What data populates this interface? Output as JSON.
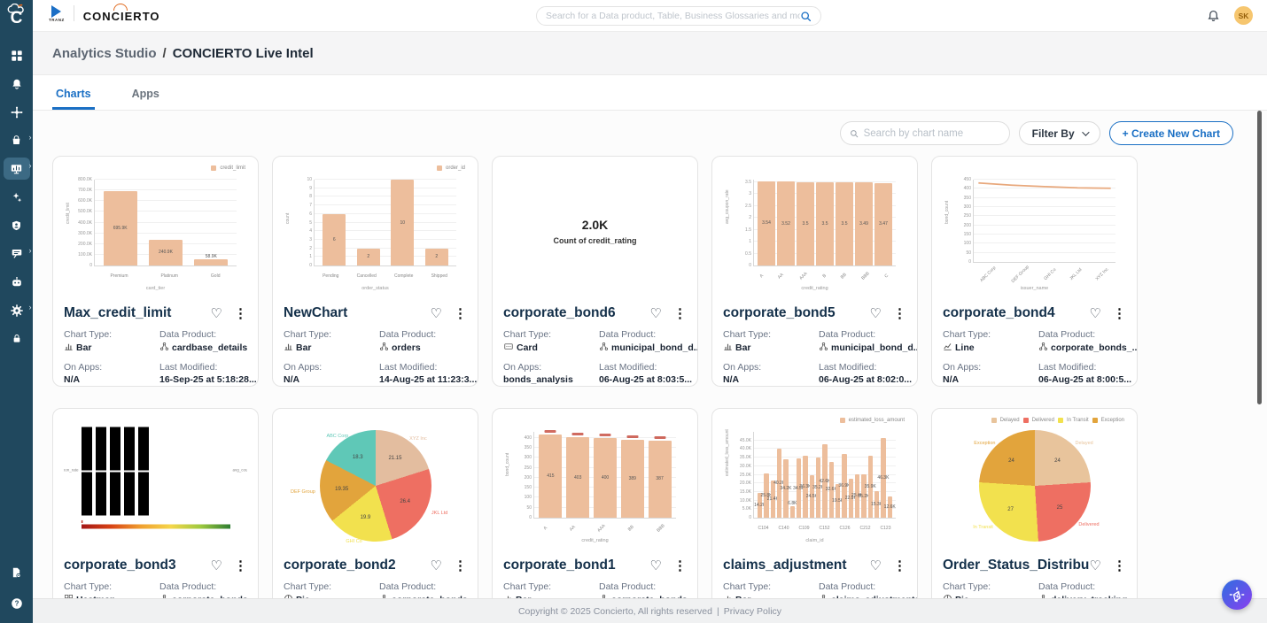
{
  "colors": {
    "sidebar": "#20485E",
    "accent_blue": "#1A6FC4",
    "bar_fill": "#EDBE9C",
    "brand_orange": "#E06A1F"
  },
  "sidebar": {
    "logo": "C",
    "icons": [
      {
        "icon": "grid",
        "name": "dashboard-icon"
      },
      {
        "icon": "bell",
        "name": "alerts-bell-icon"
      },
      {
        "icon": "move",
        "name": "compass-move-icon"
      },
      {
        "icon": "bag",
        "name": "marketplace-bag-icon",
        "chevron": true
      },
      {
        "icon": "monitor",
        "name": "analytics-studio-icon",
        "chevron": true,
        "active": true
      },
      {
        "icon": "sparkle",
        "name": "ai-sparkle-icon"
      },
      {
        "icon": "shield",
        "name": "security-shield-icon"
      },
      {
        "icon": "chat",
        "name": "collab-screen-icon",
        "chevron": true
      },
      {
        "icon": "bot",
        "name": "bot-icon"
      },
      {
        "icon": "gear",
        "name": "settings-gear-icon",
        "chevron": true
      },
      {
        "icon": "lock",
        "name": "secure-vault-icon"
      }
    ],
    "bottom_icons": [
      {
        "icon": "notes",
        "name": "release-notes-icon"
      },
      {
        "icon": "help",
        "name": "help-icon"
      }
    ]
  },
  "header": {
    "brand_tranz": "TRANZ",
    "brand_concierto": "CONCIERTO",
    "search_placeholder": "Search for a Data product, Table, Business Glossaries and more",
    "avatar": "SK"
  },
  "breadcrumb": {
    "section": "Analytics Studio",
    "separator": "/",
    "page": "CONCIERTO Live Intel"
  },
  "tabs": [
    {
      "label": "Charts"
    },
    {
      "label": "Apps"
    }
  ],
  "toolbar": {
    "search_placeholder": "Search by chart name",
    "filter_label": "Filter By",
    "create_label": "+  Create New Chart"
  },
  "meta_labels": {
    "chart_type": "Chart Type:",
    "data_product": "Data Product:",
    "on_apps": "On Apps:",
    "last_modified": "Last Modified:"
  },
  "footer": {
    "copyright": "Copyright © 2025 Concierto, All rights reserved",
    "divider": "|",
    "privacy": "Privacy Policy"
  },
  "cards": [
    {
      "title": "Max_credit_limit",
      "chart_type": "Bar",
      "data_product": "cardbase_details",
      "on_apps": "N/A",
      "last_modified": "16-Sep-25 at 5:18:28...",
      "chart_data": {
        "type": "bar",
        "legend": "credit_limit",
        "color": "#EDBE9C",
        "categories": [
          "Premium",
          "Platinum",
          "Gold"
        ],
        "values": [
          695.9,
          240.9,
          58.9
        ],
        "value_labels": [
          "695.9K",
          "240.9K",
          "58.9K"
        ],
        "ymax": 800,
        "ytickvals": [
          0,
          100,
          200,
          300,
          400,
          500,
          600,
          700,
          800
        ],
        "yticklabels": [
          "0",
          "100.0K",
          "200.0K",
          "300.0K",
          "400.0K",
          "500.0K",
          "600.0K",
          "700.0K",
          "800.0K"
        ],
        "xlabel": "card_tier",
        "ylabel": "credit_limit"
      }
    },
    {
      "title": "NewChart",
      "chart_type": "Bar",
      "data_product": "orders",
      "on_apps": "N/A",
      "last_modified": "14-Aug-25 at 11:23:3...",
      "chart_data": {
        "type": "bar",
        "legend": "order_id",
        "color": "#EDBE9C",
        "categories": [
          "Pending",
          "Cancelled",
          "Complete",
          "Shipped"
        ],
        "values": [
          6,
          2,
          10,
          2
        ],
        "value_labels": [
          "6",
          "2",
          "10",
          "2"
        ],
        "ymax": 10,
        "ytickvals": [
          0,
          1,
          2,
          3,
          4,
          5,
          6,
          7,
          8,
          9,
          10
        ],
        "yticklabels": [
          "0",
          "1",
          "2",
          "3",
          "4",
          "5",
          "6",
          "7",
          "8",
          "9",
          "10"
        ],
        "xlabel": "order_status",
        "ylabel": "count"
      }
    },
    {
      "title": "corporate_bond6",
      "chart_type": "Card",
      "data_product": "municipal_bond_d...",
      "on_apps": "bonds_analysis",
      "last_modified": "06-Aug-25 at 8:03:5...",
      "chart_data": {
        "type": "card",
        "value": "2.0K",
        "label": "Count of credit_rating"
      }
    },
    {
      "title": "corporate_bond5",
      "chart_type": "Bar",
      "data_product": "municipal_bond_d...",
      "on_apps": "N/A",
      "last_modified": "06-Aug-25 at 8:02:0...",
      "chart_data": {
        "type": "bar",
        "color": "#EDBE9C",
        "categories": [
          "A",
          "AA",
          "AAA",
          "B",
          "BB",
          "BBB",
          "C"
        ],
        "values": [
          3.54,
          3.52,
          3.5,
          3.5,
          3.5,
          3.49,
          3.47
        ],
        "value_labels": [
          "3.54",
          "3.52",
          "3.5",
          "3.5",
          "3.5",
          "3.49",
          "3.47"
        ],
        "ymax": 3.6,
        "rotate_x": true,
        "ytickvals": [
          0,
          0.5,
          1,
          1.5,
          2,
          2.5,
          3,
          3.5
        ],
        "yticklabels": [
          "0",
          "0.5",
          "1",
          "1.5",
          "2",
          "2.5",
          "3",
          "3.5"
        ],
        "xlabel": "credit_rating",
        "ylabel": "avg_coupon_rate"
      }
    },
    {
      "title": "corporate_bond4",
      "chart_type": "Line",
      "data_product": "corporate_bonds_...",
      "on_apps": "N/A",
      "last_modified": "06-Aug-25 at 8:00:5...",
      "chart_data": {
        "type": "line",
        "color": "#E8A87C",
        "x": [
          "ABC Corp",
          "DEF Group",
          "GHI Co",
          "JKL Ltd",
          "XYZ Inc"
        ],
        "values": [
          432,
          420,
          412,
          405,
          403
        ],
        "ymax": 450,
        "ytickvals": [
          0,
          50,
          100,
          150,
          200,
          250,
          300,
          350,
          400,
          450
        ],
        "yticklabels": [
          "0",
          "50",
          "100",
          "150",
          "200",
          "250",
          "300",
          "350",
          "400",
          "450"
        ],
        "xlabel": "issuer_name",
        "ylabel": "bond_count"
      }
    },
    {
      "title": "corporate_bond3",
      "chart_type": "Heatmap",
      "data_product": "corporate_bonds_...",
      "on_apps": "",
      "last_modified": "",
      "chart_data": {
        "type": "heatmap",
        "columns": [
          "A",
          "AA",
          "AAA",
          "BB",
          "BBB"
        ],
        "row_label": "avg_coupon_rate",
        "colorscale": [
          "#a31515",
          "#f0a030",
          "#f5d64a",
          "#2e7d32"
        ]
      }
    },
    {
      "title": "corporate_bond2",
      "chart_type": "Pie",
      "data_product": "corporate_bonds_...",
      "on_apps": "",
      "last_modified": "",
      "chart_data": {
        "type": "pie",
        "callouts": true,
        "slices": [
          {
            "label": "XYZ Inc",
            "value": 21.15,
            "text": "21.15",
            "color": "#E3BD9F"
          },
          {
            "label": "JKL Ltd",
            "value": 26.4,
            "text": "26.4",
            "color": "#EE6F62"
          },
          {
            "label": "GHI Co",
            "value": 19.9,
            "text": "19.9",
            "color": "#F2E14E"
          },
          {
            "label": "DEF Group",
            "value": 19.35,
            "text": "19.35",
            "color": "#E2A43C"
          },
          {
            "label": "ABC Corp",
            "value": 18.3,
            "text": "18.3",
            "color": "#5FC8B7"
          }
        ]
      }
    },
    {
      "title": "corporate_bond1",
      "chart_type": "Bar",
      "data_product": "corporate_bonds_...",
      "on_apps": "",
      "last_modified": "",
      "chart_data": {
        "type": "bar",
        "color": "#EDBE9C",
        "bar_top_marks": true,
        "categories": [
          "A",
          "AA",
          "AAA",
          "BB",
          "BBB"
        ],
        "values": [
          415,
          403,
          400,
          389,
          387
        ],
        "value_labels": [
          "415",
          "403",
          "400",
          "389",
          "387"
        ],
        "ymax": 430,
        "rotate_x": true,
        "ytickvals": [
          0,
          50,
          100,
          150,
          200,
          250,
          300,
          350,
          400
        ],
        "yticklabels": [
          "0",
          "50",
          "100",
          "150",
          "200",
          "250",
          "300",
          "350",
          "400"
        ],
        "xlabel": "credit_rating",
        "ylabel": "bond_count"
      }
    },
    {
      "title": "claims_adjustment",
      "chart_type": "Bar",
      "data_product": "claims_adjustments",
      "on_apps": "",
      "last_modified": "",
      "chart_data": {
        "type": "bar",
        "legend": "estimated_loss_amount",
        "color": "#EDBE9C",
        "values": [
          14.2,
          25.8,
          21.4,
          40.2,
          34.2,
          6.8,
          34.5,
          36.3,
          24.5,
          35.2,
          42.6,
          32.6,
          19.5,
          36.9,
          22.9,
          25.4,
          25.2,
          35.9,
          15.3,
          46.3,
          12.6
        ],
        "value_labels": [
          "14.2K",
          "25.8K",
          "21.4K",
          "40.2K",
          "34.2K",
          "6.8K",
          "34.5K",
          "36.3K",
          "24.5K",
          "35.2K",
          "42.6K",
          "32.6K",
          "19.5K",
          "36.9K",
          "22.9K",
          "25.4K",
          "25.2K",
          "35.9K",
          "15.3K",
          "46.3K",
          "12.6K"
        ],
        "ymax": 50,
        "ytickvals": [
          0,
          5,
          10,
          15,
          20,
          25,
          30,
          35,
          40,
          45
        ],
        "yticklabels": [
          "0",
          "5.0K",
          "10.0K",
          "15.0K",
          "20.0K",
          "25.0K",
          "30.0K",
          "35.0K",
          "40.0K",
          "45.0K"
        ],
        "xtick_labels": [
          "C104",
          "C140",
          "C109",
          "C152",
          "C126",
          "C212",
          "C123"
        ],
        "xlabel": "claim_id",
        "ylabel": "estimated_loss_amount"
      }
    },
    {
      "title": "Order_Status_Distribu...",
      "chart_type": "Pie",
      "data_product": "delivery_tracking",
      "on_apps": "",
      "last_modified": "",
      "chart_data": {
        "type": "pie",
        "callouts": true,
        "legend_items": [
          {
            "label": "Delayed",
            "color": "#E8C49C"
          },
          {
            "label": "Delivered",
            "color": "#EE6F62"
          },
          {
            "label": "In Transit",
            "color": "#F2E14E"
          },
          {
            "label": "Exception",
            "color": "#E2A43C"
          }
        ],
        "slices": [
          {
            "label": "Delayed",
            "value": 24,
            "text": "24",
            "color": "#E8C49C"
          },
          {
            "label": "Delivered",
            "value": 25,
            "text": "25",
            "color": "#EE6F62"
          },
          {
            "label": "In Transit",
            "value": 27,
            "text": "27",
            "color": "#F2E14E"
          },
          {
            "label": "Exception",
            "value": 24,
            "text": "24",
            "color": "#E2A43C"
          }
        ]
      }
    }
  ]
}
